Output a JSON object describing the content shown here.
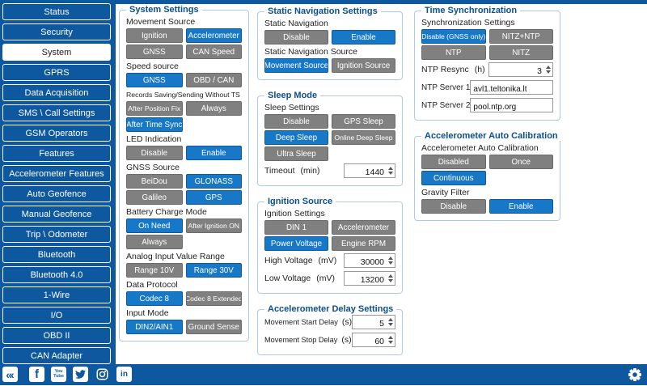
{
  "colors": {
    "sidebar_blue": "#0e58a0",
    "selected_blue": "#1878c8",
    "button_gray": "#808080",
    "panel_border": "#adc9e8",
    "panel_title": "#0a4f91"
  },
  "sidebar": {
    "items": [
      {
        "label": "Status",
        "selected": false
      },
      {
        "label": "Security",
        "selected": false
      },
      {
        "label": "System",
        "selected": true
      },
      {
        "label": "GPRS",
        "selected": false
      },
      {
        "label": "Data Acquisition",
        "selected": false
      },
      {
        "label": "SMS \\ Call Settings",
        "selected": false
      },
      {
        "label": "GSM Operators",
        "selected": false
      },
      {
        "label": "Features",
        "selected": false
      },
      {
        "label": "Accelerometer Features",
        "selected": false
      },
      {
        "label": "Auto Geofence",
        "selected": false
      },
      {
        "label": "Manual Geofence",
        "selected": false
      },
      {
        "label": "Trip \\ Odometer",
        "selected": false
      },
      {
        "label": "Bluetooth",
        "selected": false
      },
      {
        "label": "Bluetooth 4.0",
        "selected": false
      },
      {
        "label": "1-Wire",
        "selected": false
      },
      {
        "label": "I/O",
        "selected": false
      },
      {
        "label": "OBD II",
        "selected": false
      },
      {
        "label": "CAN Adapter",
        "selected": false
      }
    ]
  },
  "footer": {
    "social_icons": [
      "back-icon",
      "facebook-icon",
      "youtube-icon",
      "twitter-icon",
      "instagram-icon",
      "linkedin-icon"
    ],
    "settings_icon": "gear-icon"
  },
  "panels": [
    {
      "title": "System Settings",
      "column": 1,
      "rows": [
        {
          "type": "label",
          "text": "Movement Source"
        },
        {
          "type": "buttons",
          "buttons": [
            {
              "label": "Ignition",
              "selected": false
            },
            {
              "label": "Accelerometer",
              "selected": true
            }
          ]
        },
        {
          "type": "buttons",
          "buttons": [
            {
              "label": "GNSS",
              "selected": false
            },
            {
              "label": "CAN Speed",
              "selected": false
            }
          ]
        },
        {
          "type": "label",
          "text": "Speed source"
        },
        {
          "type": "buttons",
          "buttons": [
            {
              "label": "GNSS",
              "selected": true
            },
            {
              "label": "OBD / CAN",
              "selected": false
            }
          ]
        },
        {
          "type": "label",
          "text": "Records Saving/Sending Without TS"
        },
        {
          "type": "buttons",
          "buttons": [
            {
              "label": "After Position Fix",
              "selected": false
            },
            {
              "label": "Always",
              "selected": false
            }
          ]
        },
        {
          "type": "buttons",
          "buttons": [
            {
              "label": "After Time Sync",
              "selected": true
            },
            null
          ]
        },
        {
          "type": "label",
          "text": "LED Indication"
        },
        {
          "type": "buttons",
          "buttons": [
            {
              "label": "Disable",
              "selected": false
            },
            {
              "label": "Enable",
              "selected": true
            }
          ]
        },
        {
          "type": "label",
          "text": "GNSS Source"
        },
        {
          "type": "buttons",
          "buttons": [
            {
              "label": "BeiDou",
              "selected": false
            },
            {
              "label": "GLONASS",
              "selected": true
            }
          ]
        },
        {
          "type": "buttons",
          "buttons": [
            {
              "label": "Galileo",
              "selected": false
            },
            {
              "label": "GPS",
              "selected": true
            }
          ]
        },
        {
          "type": "label",
          "text": "Battery Charge Mode"
        },
        {
          "type": "buttons",
          "buttons": [
            {
              "label": "On Need",
              "selected": true
            },
            {
              "label": "After Ignition ON",
              "selected": false
            }
          ]
        },
        {
          "type": "buttons",
          "buttons": [
            {
              "label": "Always",
              "selected": false
            },
            null
          ]
        },
        {
          "type": "label",
          "text": "Analog Input Value Range"
        },
        {
          "type": "buttons",
          "buttons": [
            {
              "label": "Range 10V",
              "selected": false
            },
            {
              "label": "Range 30V",
              "selected": true
            }
          ]
        },
        {
          "type": "label",
          "text": "Data Protocol"
        },
        {
          "type": "buttons",
          "buttons": [
            {
              "label": "Codec 8",
              "selected": true
            },
            {
              "label": "Codec 8 Extended",
              "selected": false
            }
          ]
        },
        {
          "type": "label",
          "text": "Input Mode"
        },
        {
          "type": "buttons",
          "buttons": [
            {
              "label": "DIN2/AIN1",
              "selected": true
            },
            {
              "label": "Ground Sense",
              "selected": false
            }
          ]
        }
      ]
    },
    {
      "title": "Static Navigation Settings",
      "column": 2,
      "rows": [
        {
          "type": "label",
          "text": "Static Navigation"
        },
        {
          "type": "buttons",
          "buttons": [
            {
              "label": "Disable",
              "selected": false
            },
            {
              "label": "Enable",
              "selected": true
            }
          ]
        },
        {
          "type": "label",
          "text": "Static Navigation Source"
        },
        {
          "type": "buttons",
          "buttons": [
            {
              "label": "Movement Source",
              "selected": true
            },
            {
              "label": "Ignition Source",
              "selected": false
            }
          ]
        }
      ]
    },
    {
      "title": "Sleep Mode",
      "column": 2,
      "rows": [
        {
          "type": "label",
          "text": "Sleep Settings"
        },
        {
          "type": "buttons",
          "buttons": [
            {
              "label": "Disable",
              "selected": false
            },
            {
              "label": "GPS Sleep",
              "selected": false
            }
          ]
        },
        {
          "type": "buttons",
          "buttons": [
            {
              "label": "Deep Sleep",
              "selected": true
            },
            {
              "label": "Online Deep Sleep",
              "selected": false
            }
          ]
        },
        {
          "type": "buttons",
          "buttons": [
            {
              "label": "Ultra Sleep",
              "selected": false
            },
            null
          ]
        },
        {
          "type": "number",
          "label": "Timeout",
          "unit": "(min)",
          "value": "1440"
        }
      ]
    },
    {
      "title": "Ignition Source",
      "column": 2,
      "rows": [
        {
          "type": "label",
          "text": "Ignition Settings"
        },
        {
          "type": "buttons",
          "buttons": [
            {
              "label": "DIN 1",
              "selected": false
            },
            {
              "label": "Accelerometer",
              "selected": false
            }
          ]
        },
        {
          "type": "buttons",
          "buttons": [
            {
              "label": "Power Voltage",
              "selected": true
            },
            {
              "label": "Engine RPM",
              "selected": false
            }
          ]
        },
        {
          "type": "number",
          "label": "High Voltage",
          "unit": "(mV)",
          "value": "30000"
        },
        {
          "type": "number",
          "label": "Low Voltage",
          "unit": "(mV)",
          "value": "13200"
        }
      ]
    },
    {
      "title": "Accelerometer Delay Settings",
      "column": 2,
      "rows": [
        {
          "type": "number",
          "label": "Movement Start Delay",
          "unit": "(s)",
          "value": "5"
        },
        {
          "type": "number",
          "label": "Movement Stop Delay",
          "unit": "(s)",
          "value": "60"
        }
      ]
    },
    {
      "title": "Time Synchronization",
      "column": 3,
      "rows": [
        {
          "type": "label",
          "text": "Synchronization Settings"
        },
        {
          "type": "buttons",
          "buttons": [
            {
              "label": "Disable (GNSS only)",
              "selected": true
            },
            {
              "label": "NITZ+NTP",
              "selected": false
            }
          ]
        },
        {
          "type": "buttons",
          "buttons": [
            {
              "label": "NTP",
              "selected": false
            },
            {
              "label": "NITZ",
              "selected": false
            }
          ]
        },
        {
          "type": "number",
          "label": "NTP Resync",
          "unit": "(h)",
          "value": "3"
        },
        {
          "type": "text",
          "label": "NTP Server 1",
          "value": "avl1.teltonika.lt"
        },
        {
          "type": "text",
          "label": "NTP Server 2",
          "value": "pool.ntp.org"
        }
      ]
    },
    {
      "title": "Accelerometer Auto Calibration",
      "column": 3,
      "rows": [
        {
          "type": "label",
          "text": "Accelerometer Auto Calibration"
        },
        {
          "type": "buttons",
          "buttons": [
            {
              "label": "Disabled",
              "selected": false
            },
            {
              "label": "Once",
              "selected": false
            }
          ]
        },
        {
          "type": "buttons",
          "buttons": [
            {
              "label": "Continuous",
              "selected": true
            },
            null
          ]
        },
        {
          "type": "label",
          "text": "Gravity Filter"
        },
        {
          "type": "buttons",
          "buttons": [
            {
              "label": "Disable",
              "selected": false
            },
            {
              "label": "Enable",
              "selected": true
            }
          ]
        }
      ]
    }
  ]
}
